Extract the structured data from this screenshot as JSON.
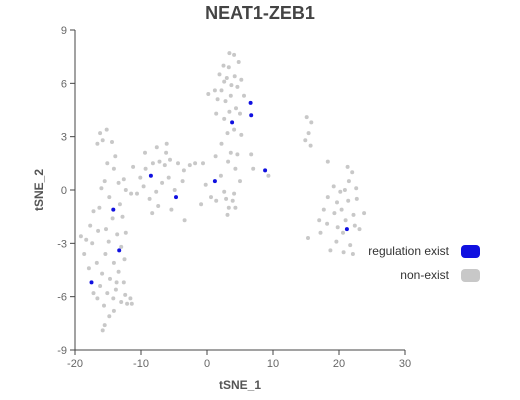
{
  "chart_data": {
    "type": "scatter",
    "title": "NEAT1-ZEB1",
    "xlabel": "tSNE_1",
    "ylabel": "tSNE_2",
    "xlim": [
      -20,
      30
    ],
    "ylim": [
      -9,
      9
    ],
    "xticks": [
      -20,
      -10,
      0,
      10,
      20,
      30
    ],
    "yticks": [
      -9,
      -6,
      -3,
      0,
      3,
      6,
      9
    ],
    "grid": false,
    "legend_position": "right",
    "series": [
      {
        "name": "regulation exist",
        "color": "#1010e0",
        "points": [
          [
            6.6,
            4.9
          ],
          [
            6.7,
            4.2
          ],
          [
            3.8,
            3.8
          ],
          [
            8.8,
            1.1
          ],
          [
            1.2,
            0.5
          ],
          [
            -8.5,
            0.8
          ],
          [
            -4.7,
            -0.4
          ],
          [
            -14.2,
            -1.1
          ],
          [
            -13.3,
            -3.4
          ],
          [
            -17.5,
            -5.2
          ],
          [
            21.2,
            -2.2
          ]
        ]
      },
      {
        "name": "non-exist",
        "color": "#c8c8c8",
        "points": [
          [
            3.4,
            7.7
          ],
          [
            4.1,
            7.6
          ],
          [
            2.5,
            7.0
          ],
          [
            4.8,
            7.2
          ],
          [
            3.3,
            6.9
          ],
          [
            1.9,
            6.5
          ],
          [
            3.0,
            6.3
          ],
          [
            4.2,
            6.4
          ],
          [
            5.2,
            6.2
          ],
          [
            2.6,
            6.1
          ],
          [
            3.7,
            5.9
          ],
          [
            4.6,
            5.8
          ],
          [
            1.2,
            5.6
          ],
          [
            2.2,
            5.6
          ],
          [
            0.2,
            5.4
          ],
          [
            1.6,
            5.1
          ],
          [
            3.6,
            5.3
          ],
          [
            5.6,
            5.3
          ],
          [
            2.8,
            5.0
          ],
          [
            4.4,
            4.6
          ],
          [
            3.4,
            4.4
          ],
          [
            5.0,
            4.3
          ],
          [
            1.4,
            4.3
          ],
          [
            2.6,
            4.0
          ],
          [
            4.1,
            3.4
          ],
          [
            3.1,
            3.2
          ],
          [
            5.2,
            3.1
          ],
          [
            2.2,
            2.6
          ],
          [
            3.6,
            2.1
          ],
          [
            1.3,
            1.9
          ],
          [
            4.6,
            2.0
          ],
          [
            3.2,
            1.6
          ],
          [
            6.7,
            2.0
          ],
          [
            7.0,
            1.2
          ],
          [
            4.3,
            1.2
          ],
          [
            2.1,
            0.8
          ],
          [
            -0.6,
            1.5
          ],
          [
            -0.2,
            0.3
          ],
          [
            2.6,
            -0.1
          ],
          [
            4.1,
            -0.2
          ],
          [
            5.0,
            0.5
          ],
          [
            0.6,
            -0.4
          ],
          [
            1.4,
            -0.6
          ],
          [
            2.9,
            -0.5
          ],
          [
            3.9,
            -0.6
          ],
          [
            -0.9,
            -0.8
          ],
          [
            3.3,
            -1.0
          ],
          [
            4.3,
            -1.0
          ],
          [
            3.1,
            -1.4
          ],
          [
            9.3,
            0.8
          ],
          [
            -1.8,
            1.5
          ],
          [
            -2.6,
            1.4
          ],
          [
            -3.5,
            1.1
          ],
          [
            -4.4,
            1.5
          ],
          [
            -5.6,
            1.7
          ],
          [
            -6.4,
            1.4
          ],
          [
            -7.2,
            1.6
          ],
          [
            -8.2,
            1.5
          ],
          [
            -9.3,
            1.2
          ],
          [
            -10.1,
            0.7
          ],
          [
            -11.2,
            1.3
          ],
          [
            -6.2,
            2.1
          ],
          [
            -7.6,
            2.4
          ],
          [
            -9.4,
            2.1
          ],
          [
            -3.7,
            0.5
          ],
          [
            -4.9,
            0.0
          ],
          [
            -5.8,
            0.7
          ],
          [
            -6.8,
            0.4
          ],
          [
            -7.7,
            -0.1
          ],
          [
            -8.7,
            -0.5
          ],
          [
            -9.6,
            0.2
          ],
          [
            -10.6,
            -0.2
          ],
          [
            -7.4,
            -0.9
          ],
          [
            -8.3,
            -1.3
          ],
          [
            -5.4,
            -1.1
          ],
          [
            -3.4,
            -1.7
          ],
          [
            -6.1,
            2.6
          ],
          [
            -11.5,
            -0.2
          ],
          [
            -15.2,
            3.4
          ],
          [
            -16.2,
            3.2
          ],
          [
            -15.8,
            2.8
          ],
          [
            -16.6,
            2.6
          ],
          [
            -14.4,
            2.7
          ],
          [
            -15.1,
            1.5
          ],
          [
            -14.1,
            1.2
          ],
          [
            -15.5,
            0.5
          ],
          [
            -13.4,
            0.4
          ],
          [
            -16.0,
            0.1
          ],
          [
            -12.6,
            0.6
          ],
          [
            -14.8,
            -0.4
          ],
          [
            -13.2,
            -0.8
          ],
          [
            -16.3,
            -1.0
          ],
          [
            -14.3,
            -1.6
          ],
          [
            -12.8,
            -1.5
          ],
          [
            -15.3,
            -2.2
          ],
          [
            -13.6,
            -2.5
          ],
          [
            -12.3,
            -2.4
          ],
          [
            -16.5,
            -2.3
          ],
          [
            -14.9,
            -2.9
          ],
          [
            -13.0,
            -3.2
          ],
          [
            -17.4,
            -3.0
          ],
          [
            -15.4,
            -3.6
          ],
          [
            -12.5,
            -3.9
          ],
          [
            -14.1,
            -4.1
          ],
          [
            -16.7,
            -4.1
          ],
          [
            -13.4,
            -4.6
          ],
          [
            -15.9,
            -4.7
          ],
          [
            -14.7,
            -5.0
          ],
          [
            -12.6,
            -5.2
          ],
          [
            -16.2,
            -5.4
          ],
          [
            -13.8,
            -5.6
          ],
          [
            -15.1,
            -5.8
          ],
          [
            -12.4,
            -5.9
          ],
          [
            -14.2,
            -6.1
          ],
          [
            -16.6,
            -6.1
          ],
          [
            -13.0,
            -6.3
          ],
          [
            -11.4,
            -6.4
          ],
          [
            -15.6,
            -6.5
          ],
          [
            -14.8,
            -7.1
          ],
          [
            -15.5,
            -7.6
          ],
          [
            -15.8,
            -7.9
          ],
          [
            -14.1,
            -6.8
          ],
          [
            -13.7,
            -5.2
          ],
          [
            -11.6,
            -6.1
          ],
          [
            -12.1,
            -6.4
          ],
          [
            -17.2,
            -5.8
          ],
          [
            -17.9,
            -4.4
          ],
          [
            -18.3,
            -2.8
          ],
          [
            -17.7,
            -2.0
          ],
          [
            -19.1,
            -2.6
          ],
          [
            -18.6,
            -3.6
          ],
          [
            -17.2,
            -1.2
          ],
          [
            -12.3,
            0.0
          ],
          [
            -13.9,
            1.9
          ],
          [
            15.1,
            4.1
          ],
          [
            15.8,
            3.8
          ],
          [
            15.4,
            3.2
          ],
          [
            15.7,
            2.5
          ],
          [
            14.9,
            2.8
          ],
          [
            18.3,
            1.6
          ],
          [
            21.3,
            1.3
          ],
          [
            22.0,
            1.0
          ],
          [
            21.5,
            0.5
          ],
          [
            19.2,
            0.2
          ],
          [
            20.2,
            -0.1
          ],
          [
            22.6,
            0.1
          ],
          [
            18.3,
            -0.4
          ],
          [
            19.7,
            -0.7
          ],
          [
            21.4,
            -0.6
          ],
          [
            20.4,
            -1.1
          ],
          [
            17.7,
            -1.1
          ],
          [
            19.3,
            -1.3
          ],
          [
            22.2,
            -1.4
          ],
          [
            21.0,
            -1.7
          ],
          [
            18.2,
            -1.9
          ],
          [
            19.8,
            -2.1
          ],
          [
            22.4,
            -2.0
          ],
          [
            20.6,
            -2.4
          ],
          [
            17.2,
            -2.4
          ],
          [
            23.1,
            -2.2
          ],
          [
            19.6,
            -2.9
          ],
          [
            21.7,
            -3.1
          ],
          [
            18.7,
            -3.4
          ],
          [
            20.7,
            -3.5
          ],
          [
            22.1,
            -3.6
          ],
          [
            15.3,
            -2.7
          ],
          [
            23.8,
            -1.3
          ],
          [
            22.7,
            -0.5
          ],
          [
            17.0,
            -1.7
          ],
          [
            20.9,
            0.0
          ]
        ]
      }
    ]
  }
}
